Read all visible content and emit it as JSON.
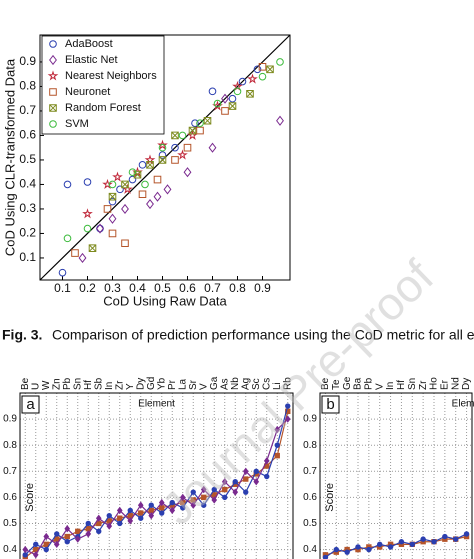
{
  "chart_data": [
    {
      "type": "scatter",
      "xlabel": "CoD Using Raw Data",
      "ylabel": "CoD Using CLR-transformed Data",
      "xlim": [
        0.01,
        1.01
      ],
      "ylim": [
        0.01,
        1.01
      ],
      "xticks": [
        0.1,
        0.2,
        0.3,
        0.4,
        0.5,
        0.6,
        0.7,
        0.8,
        0.9
      ],
      "yticks": [
        0.1,
        0.2,
        0.3,
        0.4,
        0.5,
        0.6,
        0.7,
        0.8,
        0.9
      ],
      "diagonal": true,
      "legend": "upper-left",
      "series": [
        {
          "name": "AdaBoost",
          "color": "#2b3fb0",
          "marker": "circle",
          "x": [
            0.1,
            0.12,
            0.2,
            0.25,
            0.3,
            0.33,
            0.38,
            0.42,
            0.5,
            0.55,
            0.63,
            0.7,
            0.78,
            0.82,
            0.88
          ],
          "y": [
            0.04,
            0.4,
            0.41,
            0.22,
            0.33,
            0.38,
            0.42,
            0.48,
            0.52,
            0.55,
            0.65,
            0.78,
            0.75,
            0.82,
            0.87
          ]
        },
        {
          "name": "Elastic Net",
          "color": "#7a2a8f",
          "marker": "diamond",
          "x": [
            0.18,
            0.25,
            0.3,
            0.35,
            0.45,
            0.48,
            0.52,
            0.6,
            0.7,
            0.75,
            0.97
          ],
          "y": [
            0.1,
            0.22,
            0.26,
            0.3,
            0.32,
            0.35,
            0.38,
            0.45,
            0.55,
            0.75,
            0.66
          ]
        },
        {
          "name": "Nearest Neighbors",
          "color": "#c0283a",
          "marker": "star",
          "x": [
            0.2,
            0.28,
            0.32,
            0.36,
            0.4,
            0.45,
            0.5,
            0.58,
            0.62,
            0.72,
            0.8,
            0.86
          ],
          "y": [
            0.28,
            0.4,
            0.43,
            0.38,
            0.45,
            0.5,
            0.56,
            0.52,
            0.6,
            0.72,
            0.8,
            0.83
          ]
        },
        {
          "name": "Neuronet",
          "color": "#b5552a",
          "marker": "square",
          "x": [
            0.15,
            0.28,
            0.3,
            0.35,
            0.42,
            0.48,
            0.55,
            0.6,
            0.65,
            0.75,
            0.9
          ],
          "y": [
            0.12,
            0.3,
            0.2,
            0.16,
            0.36,
            0.42,
            0.5,
            0.55,
            0.62,
            0.7,
            0.88
          ]
        },
        {
          "name": "Random Forest",
          "color": "#7d8a1e",
          "marker": "square-x",
          "x": [
            0.22,
            0.3,
            0.35,
            0.4,
            0.45,
            0.5,
            0.55,
            0.62,
            0.68,
            0.78,
            0.85,
            0.93
          ],
          "y": [
            0.14,
            0.35,
            0.4,
            0.44,
            0.48,
            0.5,
            0.6,
            0.62,
            0.66,
            0.72,
            0.77,
            0.87
          ]
        },
        {
          "name": "SVM",
          "color": "#3dbb3d",
          "marker": "circle",
          "x": [
            0.12,
            0.2,
            0.3,
            0.38,
            0.43,
            0.5,
            0.58,
            0.65,
            0.72,
            0.8,
            0.9,
            0.97
          ],
          "y": [
            0.18,
            0.22,
            0.4,
            0.45,
            0.4,
            0.55,
            0.6,
            0.65,
            0.73,
            0.78,
            0.84,
            0.9
          ]
        }
      ]
    },
    {
      "type": "line",
      "panel": "a",
      "title": "Element",
      "ylabel": "Score",
      "ylim": [
        0.36,
        1.0
      ],
      "yticks": [
        0.9,
        0.8,
        0.7,
        0.6,
        0.5,
        0.4
      ],
      "grid": true,
      "categories": [
        "Be",
        "U",
        "W",
        "Zn",
        "Pb",
        "Sn",
        "Hf",
        "Sb",
        "In",
        "Zr",
        "Y",
        "Dy",
        "Gd",
        "Yb",
        "Pr",
        "La",
        "Sr",
        "V",
        "Ga",
        "As",
        "Nb",
        "Ag",
        "Sc",
        "Cs",
        "Li",
        "Rb"
      ],
      "series": [
        {
          "color": "#b5552a",
          "marker": "square",
          "values": [
            0.37,
            0.4,
            0.42,
            0.44,
            0.45,
            0.47,
            0.48,
            0.5,
            0.51,
            0.52,
            0.53,
            0.54,
            0.55,
            0.56,
            0.57,
            0.58,
            0.59,
            0.6,
            0.61,
            0.63,
            0.65,
            0.67,
            0.69,
            0.72,
            0.76,
            0.93
          ]
        },
        {
          "color": "#2b3fb0",
          "marker": "circle",
          "values": [
            0.38,
            0.42,
            0.4,
            0.46,
            0.43,
            0.45,
            0.5,
            0.47,
            0.53,
            0.5,
            0.55,
            0.52,
            0.57,
            0.54,
            0.58,
            0.56,
            0.62,
            0.57,
            0.63,
            0.6,
            0.66,
            0.62,
            0.7,
            0.68,
            0.8,
            0.95
          ]
        },
        {
          "color": "#7a2a8f",
          "marker": "diamond",
          "values": [
            0.4,
            0.38,
            0.45,
            0.42,
            0.48,
            0.44,
            0.46,
            0.52,
            0.49,
            0.55,
            0.51,
            0.57,
            0.53,
            0.58,
            0.55,
            0.6,
            0.57,
            0.63,
            0.59,
            0.66,
            0.62,
            0.7,
            0.66,
            0.74,
            0.86,
            0.9
          ]
        }
      ]
    },
    {
      "type": "line",
      "panel": "b",
      "title": "Element",
      "ylabel": "Score",
      "ylim": [
        0.36,
        1.0
      ],
      "yticks": [
        0.9,
        0.8,
        0.7,
        0.6,
        0.5,
        0.4
      ],
      "grid": true,
      "categories": [
        "Be",
        "Te",
        "Ge",
        "Ba",
        "Pb",
        "V",
        "In",
        "Hf",
        "Sn",
        "Zr",
        "Ho",
        "Er",
        "Nd",
        "Dy"
      ],
      "series": [
        {
          "color": "#b5552a",
          "marker": "square",
          "values": [
            0.38,
            0.39,
            0.4,
            0.4,
            0.41,
            0.41,
            0.42,
            0.42,
            0.42,
            0.43,
            0.43,
            0.44,
            0.44,
            0.45
          ]
        },
        {
          "color": "#2b3fb0",
          "marker": "circle",
          "values": [
            0.37,
            0.4,
            0.39,
            0.41,
            0.4,
            0.42,
            0.41,
            0.43,
            0.42,
            0.44,
            0.43,
            0.45,
            0.44,
            0.46
          ]
        }
      ]
    }
  ],
  "caption": {
    "label": "Fig. 3.",
    "text": "Comparison of prediction performance using the CoD metric for all el"
  },
  "watermark": "Journal Pre-proof"
}
